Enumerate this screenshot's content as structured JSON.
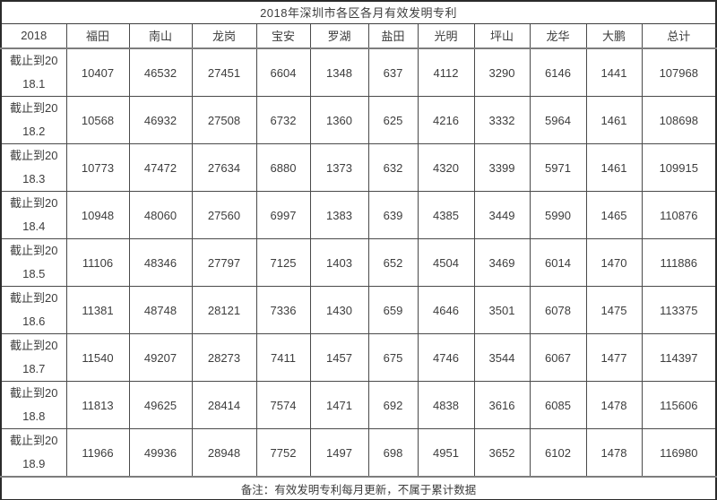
{
  "title": "2018年深圳市各区各月有效发明专利",
  "table": {
    "corner_label": "2018",
    "columns": [
      "福田",
      "南山",
      "龙岗",
      "宝安",
      "罗湖",
      "盐田",
      "光明",
      "坪山",
      "龙华",
      "大鹏",
      "总计"
    ],
    "rows": [
      {
        "label": "截止到2018.1",
        "values": [
          "10407",
          "46532",
          "27451",
          "6604",
          "1348",
          "637",
          "4112",
          "3290",
          "6146",
          "1441",
          "107968"
        ]
      },
      {
        "label": "截止到2018.2",
        "values": [
          "10568",
          "46932",
          "27508",
          "6732",
          "1360",
          "625",
          "4216",
          "3332",
          "5964",
          "1461",
          "108698"
        ]
      },
      {
        "label": "截止到2018.3",
        "values": [
          "10773",
          "47472",
          "27634",
          "6880",
          "1373",
          "632",
          "4320",
          "3399",
          "5971",
          "1461",
          "109915"
        ]
      },
      {
        "label": "截止到2018.4",
        "values": [
          "10948",
          "48060",
          "27560",
          "6997",
          "1383",
          "639",
          "4385",
          "3449",
          "5990",
          "1465",
          "110876"
        ]
      },
      {
        "label": "截止到2018.5",
        "values": [
          "11106",
          "48346",
          "27797",
          "7125",
          "1403",
          "652",
          "4504",
          "3469",
          "6014",
          "1470",
          "111886"
        ]
      },
      {
        "label": "截止到2018.6",
        "values": [
          "11381",
          "48748",
          "28121",
          "7336",
          "1430",
          "659",
          "4646",
          "3501",
          "6078",
          "1475",
          "113375"
        ]
      },
      {
        "label": "截止到2018.7",
        "values": [
          "11540",
          "49207",
          "28273",
          "7411",
          "1457",
          "675",
          "4746",
          "3544",
          "6067",
          "1477",
          "114397"
        ]
      },
      {
        "label": "截止到2018.8",
        "values": [
          "11813",
          "49625",
          "28414",
          "7574",
          "1471",
          "692",
          "4838",
          "3616",
          "6085",
          "1478",
          "115606"
        ]
      },
      {
        "label": "截止到2018.9",
        "values": [
          "11966",
          "49936",
          "28948",
          "7752",
          "1497",
          "698",
          "4951",
          "3652",
          "6102",
          "1478",
          "116980"
        ]
      }
    ],
    "footnote": "备注：有效发明专利每月更新，不属于累计数据"
  },
  "colors": {
    "text": "#3d3d3d",
    "grid_border": "#4a4a4a",
    "outer_border": "#2b2b2b",
    "background": "#ffffff",
    "bottom_strip": "#f0f0f0"
  }
}
